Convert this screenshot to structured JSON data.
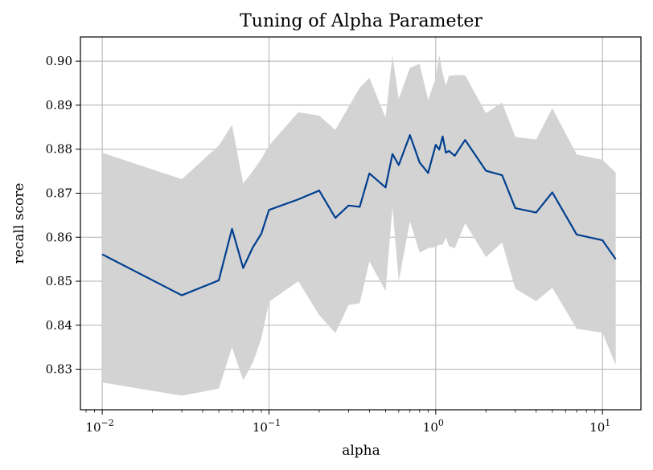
{
  "chart_data": {
    "type": "line",
    "title": "Tuning of Alpha Parameter",
    "xlabel": "alpha",
    "ylabel": "recall score",
    "xscale": "log",
    "xlim": [
      0.0074,
      17
    ],
    "ylim": [
      0.8208,
      0.9055
    ],
    "grid": true,
    "colors": {
      "line": "#003f8f",
      "band": "#d3d3d3",
      "grid": "#b0b0b0",
      "axis": "#000000"
    },
    "x_ticks": [
      {
        "value": 0.01,
        "base": "10",
        "exp": "−2"
      },
      {
        "value": 0.1,
        "base": "10",
        "exp": "−1"
      },
      {
        "value": 1,
        "base": "10",
        "exp": "0"
      },
      {
        "value": 10,
        "base": "10",
        "exp": "1"
      }
    ],
    "y_ticks": [
      {
        "value": 0.83,
        "label": "0.83"
      },
      {
        "value": 0.84,
        "label": "0.84"
      },
      {
        "value": 0.85,
        "label": "0.85"
      },
      {
        "value": 0.86,
        "label": "0.86"
      },
      {
        "value": 0.87,
        "label": "0.87"
      },
      {
        "value": 0.88,
        "label": "0.88"
      },
      {
        "value": 0.89,
        "label": "0.89"
      },
      {
        "value": 0.9,
        "label": "0.90"
      }
    ],
    "x": [
      0.01,
      0.03,
      0.05,
      0.06,
      0.07,
      0.08,
      0.09,
      0.1,
      0.15,
      0.2,
      0.25,
      0.3,
      0.35,
      0.4,
      0.5,
      0.55,
      0.6,
      0.7,
      0.8,
      0.9,
      1.0,
      1.05,
      1.1,
      1.15,
      1.2,
      1.3,
      1.5,
      2.0,
      2.5,
      3.0,
      4.0,
      5.0,
      7.0,
      10.0,
      12.0
    ],
    "series": [
      {
        "values": [
          0.8561,
          0.8468,
          0.8502,
          0.8619,
          0.853,
          0.8577,
          0.8608,
          0.8662,
          0.8686,
          0.8706,
          0.8644,
          0.8672,
          0.8669,
          0.8745,
          0.8713,
          0.8789,
          0.8764,
          0.8832,
          0.877,
          0.8746,
          0.881,
          0.8799,
          0.8829,
          0.8792,
          0.8796,
          0.8785,
          0.8821,
          0.8751,
          0.8741,
          0.8666,
          0.8656,
          0.8702,
          0.8606,
          0.8593,
          0.855
        ],
        "lower": [
          0.827,
          0.824,
          0.8256,
          0.835,
          0.8275,
          0.8315,
          0.837,
          0.8453,
          0.85,
          0.8423,
          0.8382,
          0.8446,
          0.845,
          0.8545,
          0.8478,
          0.8668,
          0.85,
          0.8636,
          0.8565,
          0.8575,
          0.8578,
          0.8583,
          0.8583,
          0.86,
          0.858,
          0.8575,
          0.8632,
          0.8555,
          0.8588,
          0.8483,
          0.8455,
          0.8485,
          0.8392,
          0.8383,
          0.831
        ]
      }
    ],
    "upper": [
      0.8792,
      0.8732,
      0.8808,
      0.8855,
      0.8722,
      0.875,
      0.8778,
      0.8808,
      0.8884,
      0.8876,
      0.8844,
      0.8896,
      0.894,
      0.8962,
      0.8872,
      0.9013,
      0.8914,
      0.8985,
      0.8994,
      0.8912,
      0.8962,
      0.9014,
      0.8973,
      0.8944,
      0.8967,
      0.8968,
      0.8968,
      0.8882,
      0.8906,
      0.8828,
      0.8822,
      0.8893,
      0.8788,
      0.8776,
      0.8747
    ]
  }
}
